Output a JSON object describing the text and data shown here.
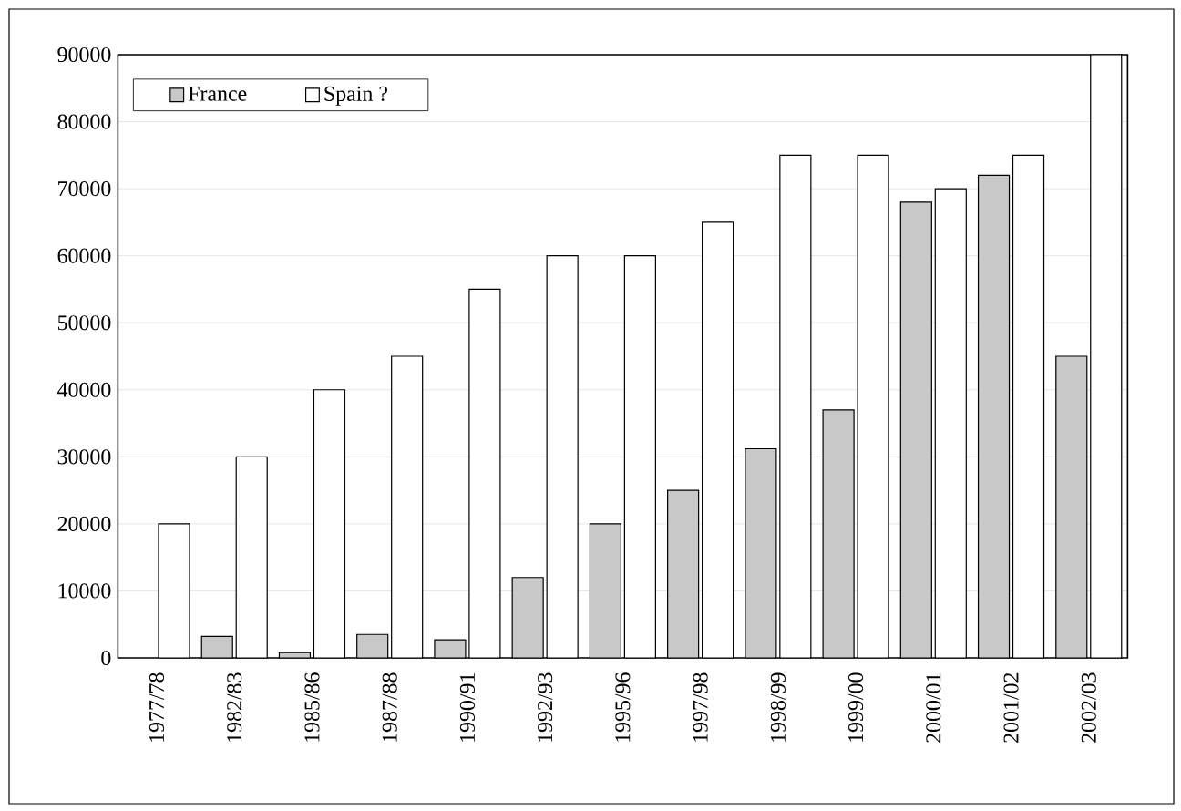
{
  "chart_data": {
    "type": "bar",
    "categories": [
      "1977/78",
      "1982/83",
      "1985/86",
      "1987/88",
      "1990/91",
      "1992/93",
      "1995/96",
      "1997/98",
      "1998/99",
      "1999/00",
      "2000/01",
      "2001/02",
      "2002/03"
    ],
    "series": [
      {
        "name": "France",
        "color": "#c8c8c8",
        "values": [
          null,
          3200,
          800,
          3500,
          2700,
          12000,
          20000,
          25000,
          31200,
          37000,
          68000,
          72000,
          45000
        ]
      },
      {
        "name": "Spain ?",
        "color": "#ffffff",
        "values": [
          20000,
          30000,
          40000,
          45000,
          55000,
          60000,
          60000,
          65000,
          75000,
          75000,
          70000,
          75000,
          90000
        ]
      }
    ],
    "ylim": [
      0,
      90000
    ],
    "yticks": [
      0,
      10000,
      20000,
      30000,
      40000,
      50000,
      60000,
      70000,
      80000,
      90000
    ],
    "grid": "y",
    "legend": "top left"
  }
}
